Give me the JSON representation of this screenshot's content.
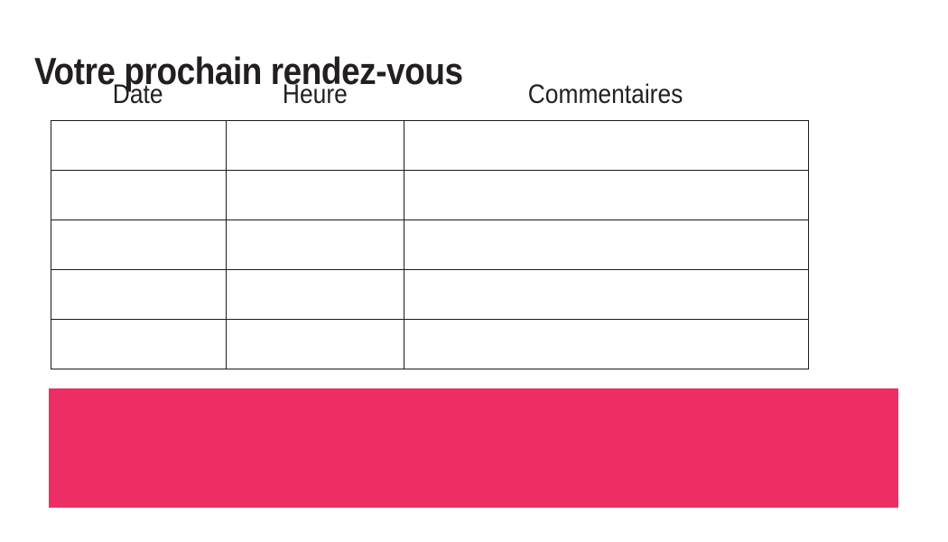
{
  "page": {
    "title": "Votre prochain rendez-vous"
  },
  "table": {
    "headers": [
      {
        "label": "Date"
      },
      {
        "label": "Heure"
      },
      {
        "label": "Commentaires"
      }
    ],
    "row_count": 5,
    "rows": [
      [
        "",
        "",
        ""
      ],
      [
        "",
        "",
        ""
      ],
      [
        "",
        "",
        ""
      ],
      [
        "",
        "",
        ""
      ],
      [
        "",
        "",
        ""
      ]
    ]
  },
  "banner": {
    "text": ""
  },
  "colors": {
    "accent_pink": "#ED2D64",
    "text": "#231F20",
    "table_border": "#1A1A1A",
    "background": "#FFFFFF"
  }
}
